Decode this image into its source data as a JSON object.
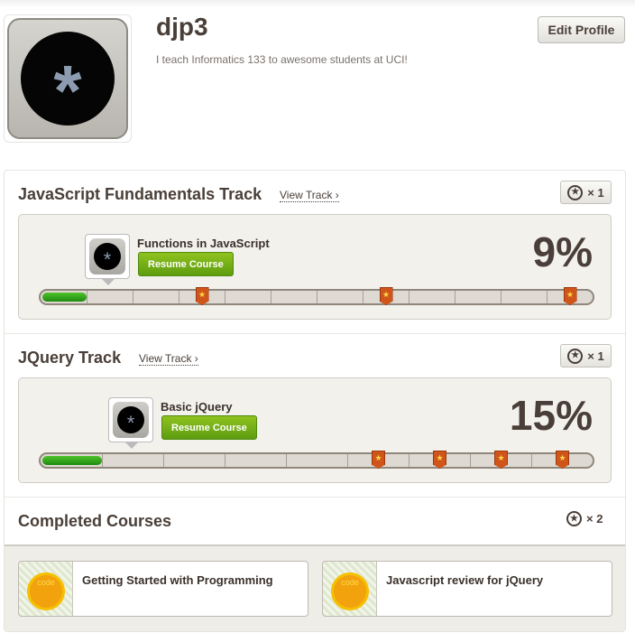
{
  "profile": {
    "username": "djp3",
    "bio": "I teach Informatics 133 to awesome students at UCI!",
    "edit_label": "Edit Profile",
    "avatar_icon": "asterisk-icon"
  },
  "tracks": [
    {
      "title": "JavaScript Fundamentals Track",
      "view_label": "View Track ›",
      "badge_count": "× 1",
      "course": "Functions in JavaScript",
      "resume_label": "Resume Course",
      "percent_label": "9%",
      "progress_fraction": 0.09,
      "segments": 12,
      "flag_segments": [
        4,
        8,
        12
      ]
    },
    {
      "title": "JQuery Track",
      "view_label": "View Track ›",
      "badge_count": "× 1",
      "course": "Basic jQuery",
      "resume_label": "Resume Course",
      "percent_label": "15%",
      "progress_fraction": 0.15,
      "segments": 9,
      "flag_segments": [
        6,
        7,
        8,
        9
      ]
    }
  ],
  "completed": {
    "title": "Completed Courses",
    "badge_count": "× 2",
    "courses": [
      {
        "name": "Getting Started with Programming",
        "badge_text": "code"
      },
      {
        "name": "Javascript review for jQuery",
        "badge_text": "code"
      }
    ]
  },
  "colors": {
    "progress": "#2ca514",
    "resume": "#6fa814",
    "flag": "#d0551a"
  }
}
